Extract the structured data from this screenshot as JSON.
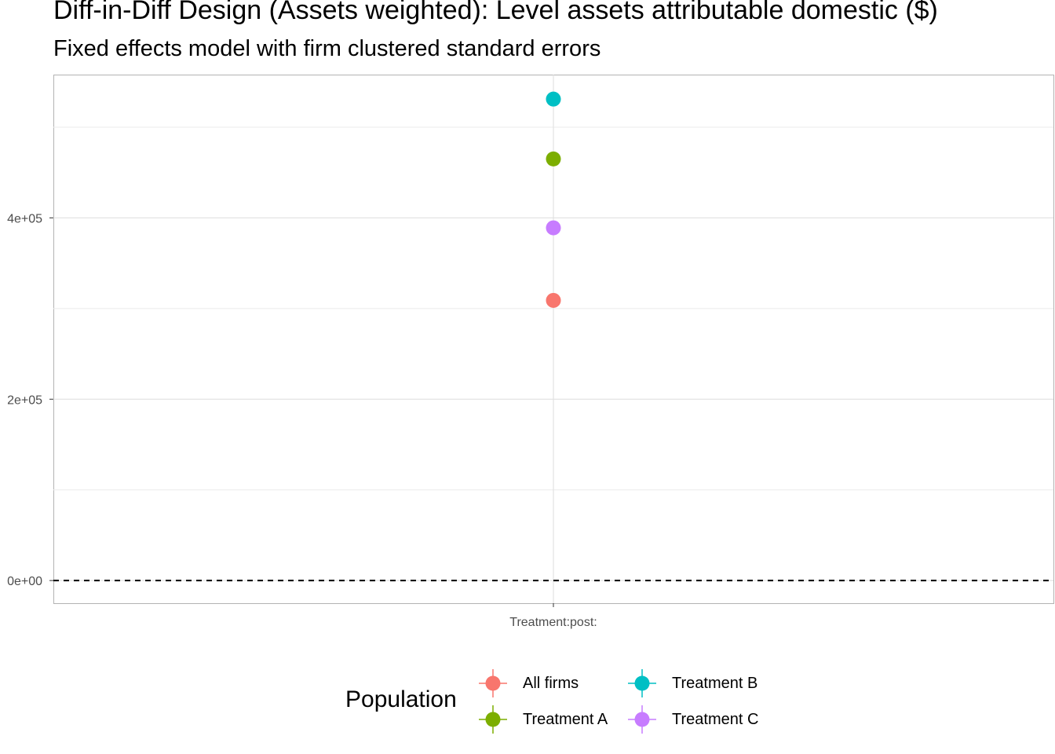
{
  "title": "Diff-in-Diff Design (Assets weighted): Level assets attributable domestic  ($)",
  "subtitle": "Fixed effects model with firm clustered standard errors",
  "chart_data": {
    "type": "scatter",
    "title": "Diff-in-Diff Design (Assets weighted): Level assets attributable domestic  ($)",
    "subtitle": "Fixed effects model with firm clustered standard errors",
    "xlabel": "",
    "ylabel": "",
    "categories": [
      "Treatment:post:"
    ],
    "y_ticks": [
      0,
      200000,
      400000
    ],
    "y_tick_labels": [
      "0e+00",
      "2e+05",
      "4e+05"
    ],
    "ylim": [
      -25000,
      558000
    ],
    "grid": true,
    "reference_line": {
      "y": 0,
      "style": "dashed"
    },
    "legend": {
      "title": "Population",
      "position": "bottom"
    },
    "series": [
      {
        "name": "All firms",
        "color": "#F8766D",
        "values": [
          309000
        ]
      },
      {
        "name": "Treatment A",
        "color": "#7CAE00",
        "values": [
          465000
        ]
      },
      {
        "name": "Treatment B",
        "color": "#00BFC4",
        "values": [
          531000
        ]
      },
      {
        "name": "Treatment C",
        "color": "#C77CFF",
        "values": [
          389000
        ]
      }
    ]
  }
}
